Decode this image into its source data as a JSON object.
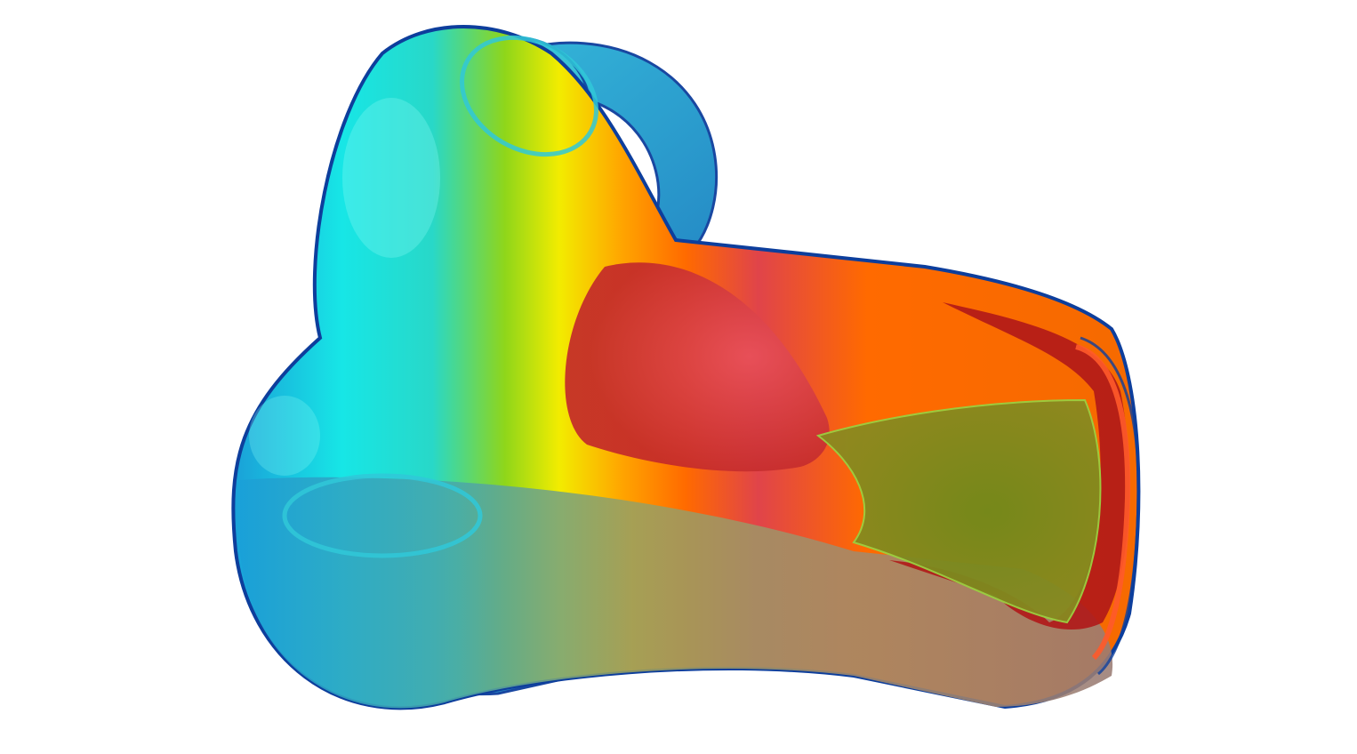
{
  "scene": {
    "subject": "pipe-junction-flow-render",
    "background_color": "#ffffff",
    "palette": {
      "cold": "#1aa0d8",
      "cool": "#17e6e6",
      "mid_low": "#8fd61a",
      "mid": "#f2ec00",
      "mid_high": "#ffa400",
      "warm": "#ff6a00",
      "hot": "#e0444a",
      "hottest": "#b01818",
      "core": "#7d8a22",
      "edge": "#0d3e9c"
    }
  }
}
